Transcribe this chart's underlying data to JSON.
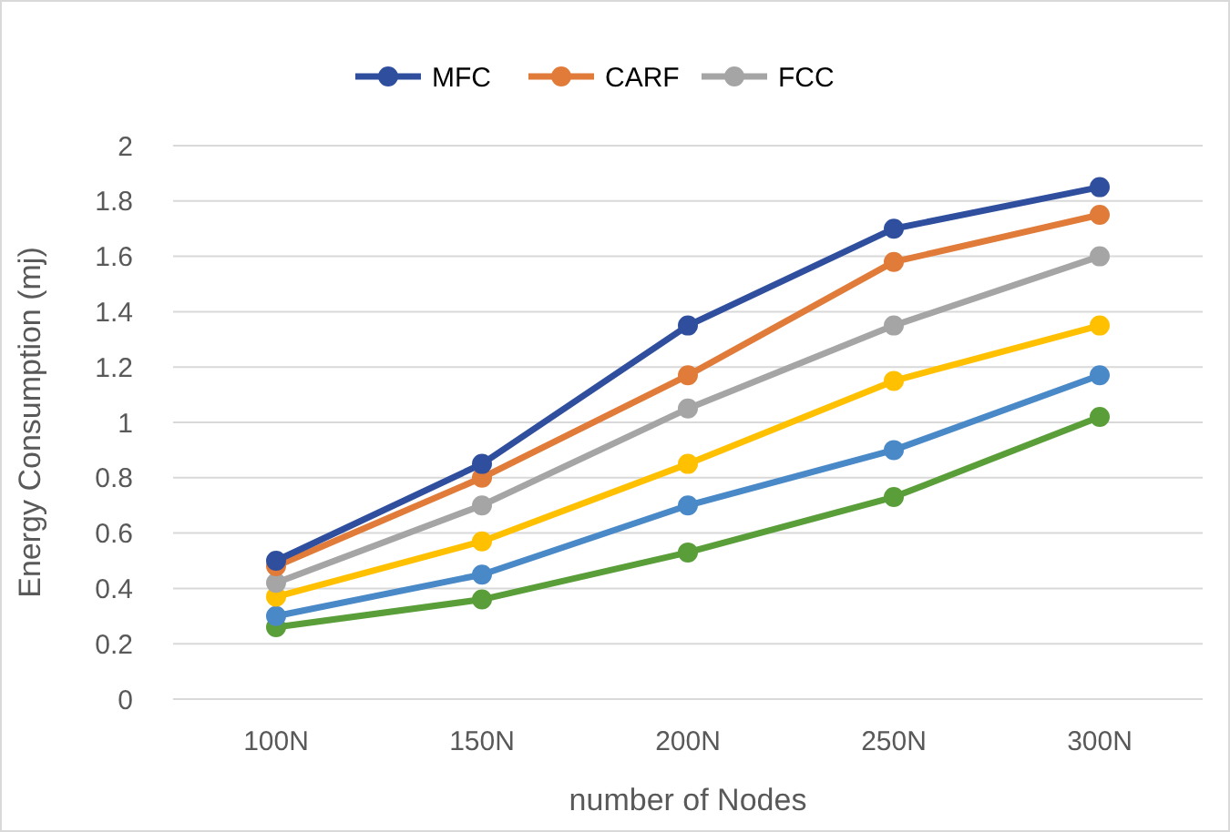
{
  "chart_data": {
    "type": "line",
    "xlabel": "number of Nodes",
    "ylabel": "Energy Consumption (mj)",
    "categories": [
      "100N",
      "150N",
      "200N",
      "250N",
      "300N"
    ],
    "ylim": [
      0,
      2
    ],
    "yticks": [
      0,
      0.2,
      0.4,
      0.6,
      0.8,
      1,
      1.2,
      1.4,
      1.6,
      1.8,
      2
    ],
    "grid": "y",
    "legend": "top",
    "marker": "circle",
    "line_style": "solid",
    "series": [
      {
        "name": "MFC",
        "color": "#2f4f9e",
        "values": [
          0.5,
          0.85,
          1.35,
          1.7,
          1.85
        ]
      },
      {
        "name": "CARF",
        "color": "#e07b39",
        "values": [
          0.48,
          0.8,
          1.17,
          1.58,
          1.75
        ]
      },
      {
        "name": "FCC",
        "color": "#a5a5a5",
        "values": [
          0.42,
          0.7,
          1.05,
          1.35,
          1.6
        ]
      },
      {
        "color": "#ffc000",
        "values": [
          0.37,
          0.57,
          0.85,
          1.15,
          1.35
        ]
      },
      {
        "color": "#4a89c8",
        "values": [
          0.3,
          0.45,
          0.7,
          0.9,
          1.17
        ]
      },
      {
        "color": "#5a9e3a",
        "values": [
          0.26,
          0.36,
          0.53,
          0.73,
          1.02
        ]
      }
    ]
  }
}
